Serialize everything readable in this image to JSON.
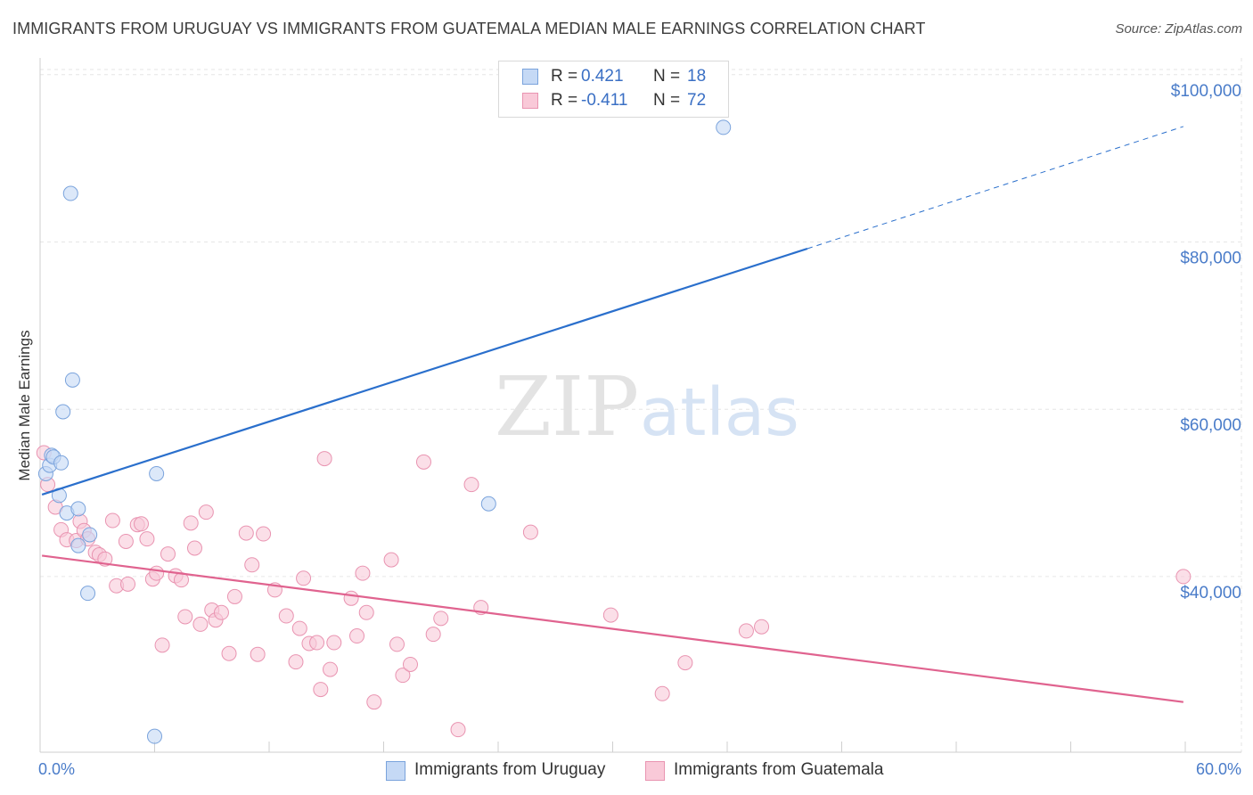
{
  "header": {
    "title": "IMMIGRANTS FROM URUGUAY VS IMMIGRANTS FROM GUATEMALA MEDIAN MALE EARNINGS CORRELATION CHART",
    "source": "Source: ZipAtlas.com"
  },
  "watermark": {
    "zip": "ZIP",
    "atlas": "atlas"
  },
  "legend": {
    "uruguay": {
      "r_label": "R =",
      "r_value": "0.421",
      "n_label": "N =",
      "n_value": "18"
    },
    "guatemala": {
      "r_label": "R =",
      "r_value": "-0.411",
      "n_label": "N =",
      "n_value": "72"
    }
  },
  "bottom_legend": {
    "uruguay": "Immigrants from Uruguay",
    "guatemala": "Immigrants from Guatemala"
  },
  "colors": {
    "uruguay_fill": "#c5d9f5",
    "uruguay_stroke": "#7aa3dc",
    "uruguay_line": "#2a6fcc",
    "guatemala_fill": "#f9c9d8",
    "guatemala_stroke": "#e994b1",
    "guatemala_line": "#e0638f",
    "tick_text": "#4a7cc9",
    "grid": "#e6e6e6"
  },
  "chart_data": {
    "type": "scatter",
    "title": "IMMIGRANTS FROM URUGUAY VS IMMIGRANTS FROM GUATEMALA MEDIAN MALE EARNINGS CORRELATION CHART",
    "xlabel": "",
    "ylabel": "Median Male Earnings",
    "xlim": [
      0,
      60
    ],
    "ylim": [
      19000,
      102000
    ],
    "x_tick_labels": [
      "0.0%",
      "60.0%"
    ],
    "y_ticks": [
      40000,
      60000,
      80000,
      100000
    ],
    "y_tick_labels": [
      "$40,000",
      "$60,000",
      "$80,000",
      "$100,000"
    ],
    "grid": true,
    "legend_position": "top-center",
    "series": [
      {
        "name": "Immigrants from Uruguay",
        "r": 0.421,
        "n": 18,
        "trend": {
          "x_start": 0.1,
          "y_start": 49800,
          "x_solid_end": 40.2,
          "y_solid_end": 79200,
          "x_end": 59.9,
          "y_end": 93800
        },
        "points": [
          [
            0.3,
            52300
          ],
          [
            0.5,
            53300
          ],
          [
            0.6,
            54500
          ],
          [
            0.7,
            54300
          ],
          [
            1.0,
            49700
          ],
          [
            1.1,
            53600
          ],
          [
            1.2,
            59700
          ],
          [
            1.4,
            47600
          ],
          [
            1.6,
            85800
          ],
          [
            1.7,
            63500
          ],
          [
            2.0,
            48100
          ],
          [
            2.0,
            43700
          ],
          [
            2.5,
            38000
          ],
          [
            2.6,
            45000
          ],
          [
            6.1,
            52300
          ],
          [
            6.0,
            20900
          ],
          [
            23.5,
            48700
          ],
          [
            35.8,
            93700
          ]
        ]
      },
      {
        "name": "Immigrants from Guatemala",
        "r": -0.411,
        "n": 72,
        "trend": {
          "x_start": 0.1,
          "y_start": 42500,
          "x_end": 59.9,
          "y_end": 25000
        },
        "points": [
          [
            0.2,
            54800
          ],
          [
            0.4,
            51000
          ],
          [
            0.8,
            48300
          ],
          [
            1.1,
            45600
          ],
          [
            1.4,
            44400
          ],
          [
            1.9,
            44300
          ],
          [
            2.1,
            46600
          ],
          [
            2.3,
            45500
          ],
          [
            2.5,
            44500
          ],
          [
            2.9,
            42900
          ],
          [
            3.1,
            42600
          ],
          [
            3.4,
            42100
          ],
          [
            3.8,
            46700
          ],
          [
            4.0,
            38900
          ],
          [
            4.5,
            44200
          ],
          [
            4.6,
            39100
          ],
          [
            5.1,
            46200
          ],
          [
            5.3,
            46300
          ],
          [
            5.6,
            44500
          ],
          [
            5.9,
            39700
          ],
          [
            6.1,
            40400
          ],
          [
            6.4,
            31800
          ],
          [
            6.7,
            42700
          ],
          [
            7.1,
            40100
          ],
          [
            7.4,
            39600
          ],
          [
            7.6,
            35200
          ],
          [
            7.9,
            46400
          ],
          [
            8.1,
            43400
          ],
          [
            8.4,
            34300
          ],
          [
            8.7,
            47700
          ],
          [
            9.0,
            36000
          ],
          [
            9.2,
            34800
          ],
          [
            9.5,
            35700
          ],
          [
            9.9,
            30800
          ],
          [
            10.2,
            37600
          ],
          [
            10.8,
            45200
          ],
          [
            11.1,
            41400
          ],
          [
            11.4,
            30700
          ],
          [
            11.7,
            45100
          ],
          [
            12.3,
            38400
          ],
          [
            12.9,
            35300
          ],
          [
            13.4,
            29800
          ],
          [
            13.6,
            33800
          ],
          [
            13.8,
            39800
          ],
          [
            14.1,
            32000
          ],
          [
            14.5,
            32100
          ],
          [
            14.7,
            26500
          ],
          [
            14.9,
            54100
          ],
          [
            15.2,
            28900
          ],
          [
            15.4,
            32100
          ],
          [
            16.3,
            37400
          ],
          [
            16.6,
            32900
          ],
          [
            16.9,
            40400
          ],
          [
            17.1,
            35700
          ],
          [
            17.5,
            25000
          ],
          [
            18.4,
            42000
          ],
          [
            18.7,
            31900
          ],
          [
            19.0,
            28200
          ],
          [
            19.4,
            29500
          ],
          [
            20.1,
            53700
          ],
          [
            20.6,
            33100
          ],
          [
            21.0,
            35000
          ],
          [
            21.9,
            21700
          ],
          [
            22.6,
            51000
          ],
          [
            23.1,
            36300
          ],
          [
            25.7,
            45300
          ],
          [
            29.9,
            35400
          ],
          [
            32.6,
            26000
          ],
          [
            33.8,
            29700
          ],
          [
            37.0,
            33500
          ],
          [
            37.8,
            34000
          ],
          [
            59.9,
            40000
          ]
        ]
      }
    ]
  }
}
